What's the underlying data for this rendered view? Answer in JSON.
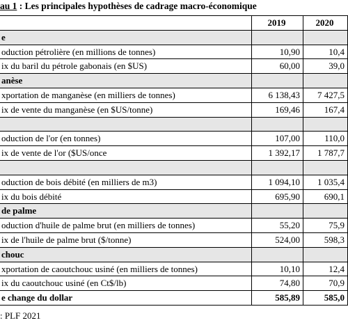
{
  "title": {
    "label": "au 1",
    "text": " : Les principales hypothèses de cadrage macro-économique"
  },
  "table": {
    "header": [
      "2019",
      "2020"
    ],
    "sections": [
      "e",
      "anèse",
      "de palme",
      "chouc"
    ],
    "rows": [
      [
        "oduction pétrolière (en millions de tonnes)",
        "10,90",
        "10,4"
      ],
      [
        "ix du baril du pétrole gabonais (en $US)",
        "60,00",
        "39,0"
      ],
      [
        "xportation de manganèse (en milliers de tonnes)",
        "6 138,43",
        "7 427,5"
      ],
      [
        "ix de vente du manganèse (en $US/tonne)",
        "169,46",
        "167,4"
      ],
      [
        "oduction de l'or (en tonnes)",
        "107,00",
        "110,0"
      ],
      [
        "ix de vente de l'or ($US/once",
        "1 392,17",
        "1 787,7"
      ],
      [
        "oduction de bois débité (en milliers de m3)",
        "1 094,10",
        "1 035,4"
      ],
      [
        "ix du bois débité",
        "695,90",
        "690,1"
      ],
      [
        "oduction d'huile de palme brut (en milliers de tonnes)",
        "55,20",
        "75,9"
      ],
      [
        "ix de l'huile de palme brut ($/tonne)",
        "524,00",
        "598,3"
      ],
      [
        "xportation de caoutchouc usiné (en milliers de tonnes)",
        "10,10",
        "12,4"
      ],
      [
        "ix du caoutchouc usiné (en Ct$/lb)",
        "74,80",
        "70,9"
      ]
    ],
    "total": [
      "e change du dollar",
      "585,89",
      "585,0"
    ]
  },
  "footnote": ": PLF 2021"
}
